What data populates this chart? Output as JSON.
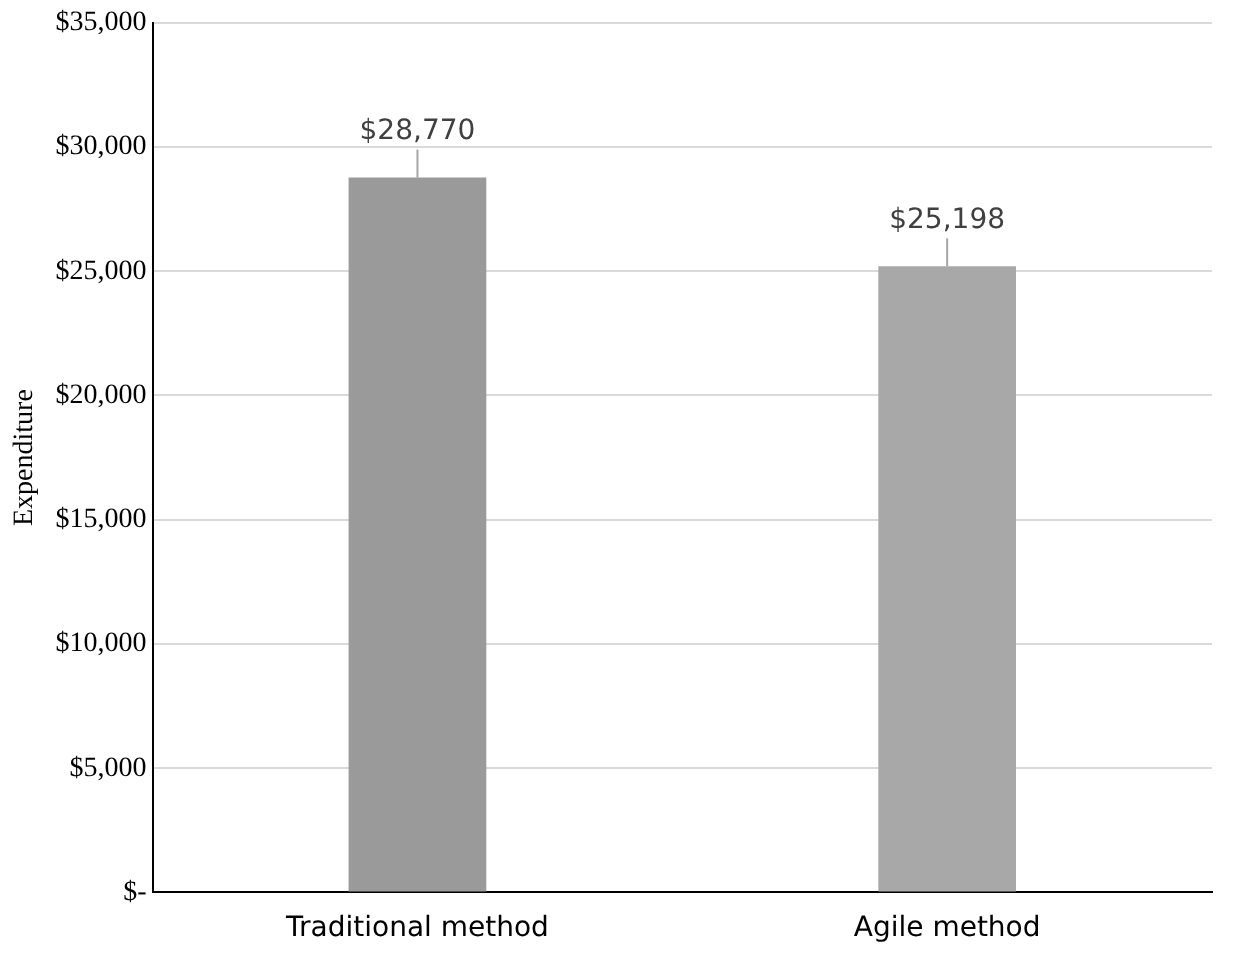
{
  "chart_data": {
    "type": "bar",
    "ylabel": "Expenditure",
    "categories": [
      "Traditional method",
      "Agile method"
    ],
    "values": [
      28770,
      25198
    ],
    "colors": [
      "#9a9a9a",
      "#a8a8a8"
    ],
    "value_labels": [
      "$28,770",
      "$25,198"
    ],
    "ylim": [
      0,
      35000
    ],
    "yticks": [
      {
        "value": 0,
        "label": "$-"
      },
      {
        "value": 5000,
        "label": "$5,000"
      },
      {
        "value": 10000,
        "label": "$10,000"
      },
      {
        "value": 15000,
        "label": "$15,000"
      },
      {
        "value": 20000,
        "label": "$20,000"
      },
      {
        "value": 25000,
        "label": "$25,000"
      },
      {
        "value": 30000,
        "label": "$30,000"
      },
      {
        "value": 35000,
        "label": "$35,000"
      }
    ],
    "grid": "y",
    "legend": false
  }
}
